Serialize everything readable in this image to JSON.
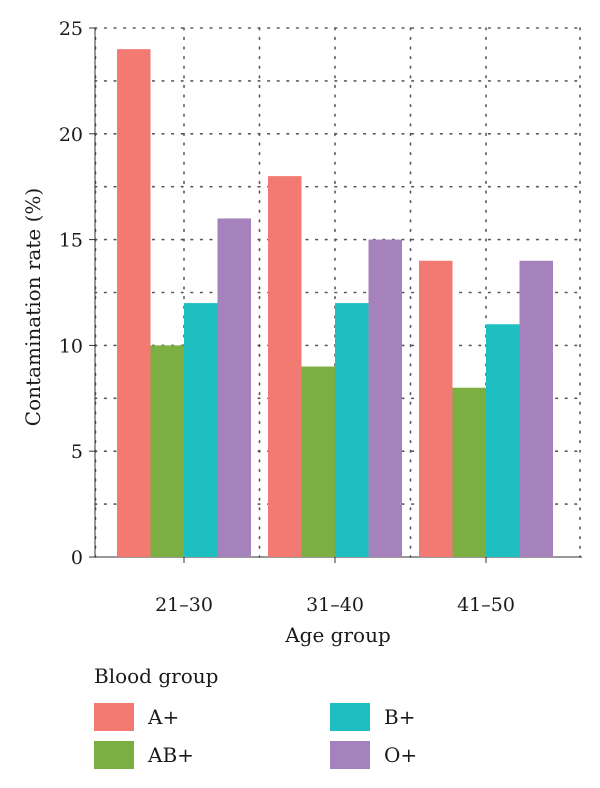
{
  "chart_data": {
    "type": "bar",
    "categories": [
      "21–30",
      "31–40",
      "41–50"
    ],
    "series": [
      {
        "name": "A+",
        "values": [
          24,
          18,
          14
        ],
        "color": "#F27A72"
      },
      {
        "name": "AB+",
        "values": [
          10,
          9,
          8
        ],
        "color": "#7CAF42"
      },
      {
        "name": "B+",
        "values": [
          12,
          12,
          11
        ],
        "color": "#1DBFC1"
      },
      {
        "name": "O+",
        "values": [
          16,
          15,
          14
        ],
        "color": "#A682BD"
      }
    ],
    "xlabel": "Age group",
    "ylabel": "Contamination rate (%)",
    "ylim": [
      0,
      25
    ],
    "yticks": [
      0,
      5,
      10,
      15,
      20,
      25
    ],
    "grid": true,
    "legend": {
      "title": "Blood group",
      "placement": "bottom"
    }
  }
}
